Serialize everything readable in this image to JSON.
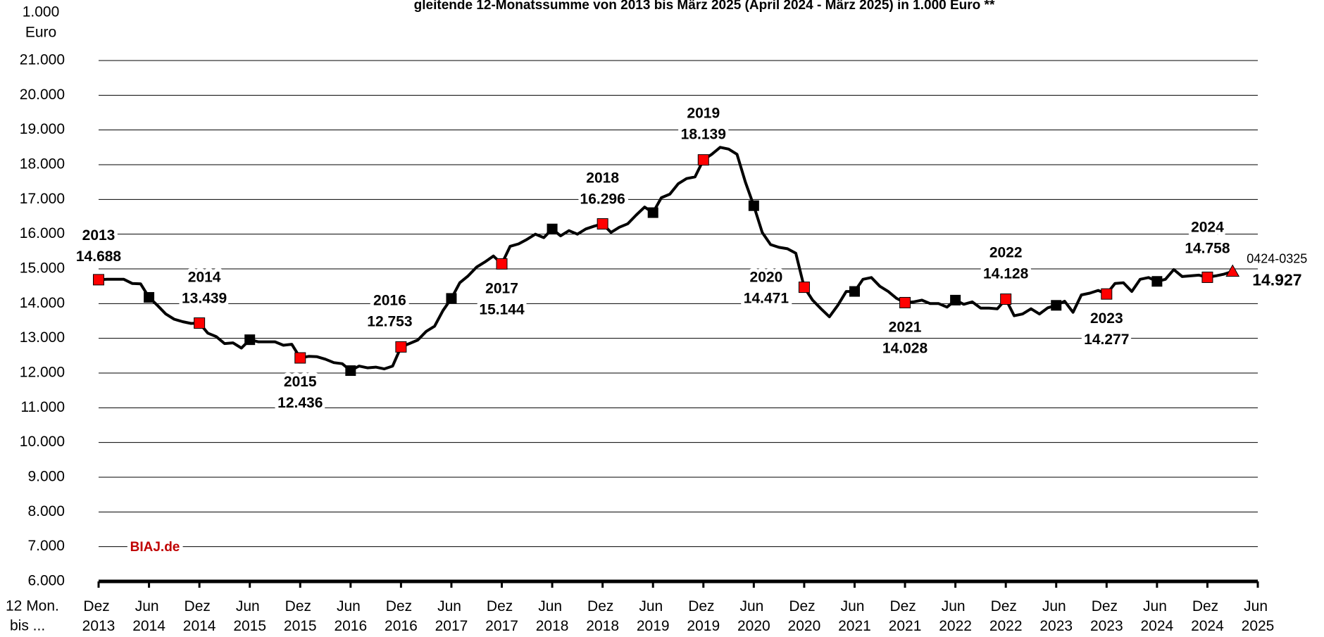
{
  "chart_data": {
    "type": "line",
    "title": "gleitende 12-Monatssumme von 2013 bis März 2025 (April 2024 - März 2025) in 1.000 Euro **",
    "y_unit": [
      "1.000",
      "Euro"
    ],
    "x_corner": [
      "12 Mon.",
      "bis ..."
    ],
    "source": "BIAJ.de",
    "source_color": "#c00000",
    "line_color": "#000000",
    "marker_colors": {
      "dec": "#ff0000",
      "jun": "#000000",
      "last": "#ff0000"
    },
    "grid": true,
    "x": [
      "2013-12",
      "2014-01",
      "2014-02",
      "2014-03",
      "2014-04",
      "2014-05",
      "2014-06",
      "2014-07",
      "2014-08",
      "2014-09",
      "2014-10",
      "2014-11",
      "2014-12",
      "2015-01",
      "2015-02",
      "2015-03",
      "2015-04",
      "2015-05",
      "2015-06",
      "2015-07",
      "2015-08",
      "2015-09",
      "2015-10",
      "2015-11",
      "2015-12",
      "2016-01",
      "2016-02",
      "2016-03",
      "2016-04",
      "2016-05",
      "2016-06",
      "2016-07",
      "2016-08",
      "2016-09",
      "2016-10",
      "2016-11",
      "2016-12",
      "2017-01",
      "2017-02",
      "2017-03",
      "2017-04",
      "2017-05",
      "2017-06",
      "2017-07",
      "2017-08",
      "2017-09",
      "2017-10",
      "2017-11",
      "2017-12",
      "2018-01",
      "2018-02",
      "2018-03",
      "2018-04",
      "2018-05",
      "2018-06",
      "2018-07",
      "2018-08",
      "2018-09",
      "2018-10",
      "2018-11",
      "2018-12",
      "2019-01",
      "2019-02",
      "2019-03",
      "2019-04",
      "2019-05",
      "2019-06",
      "2019-07",
      "2019-08",
      "2019-09",
      "2019-10",
      "2019-11",
      "2019-12",
      "2020-01",
      "2020-02",
      "2020-03",
      "2020-04",
      "2020-05",
      "2020-06",
      "2020-07",
      "2020-08",
      "2020-09",
      "2020-10",
      "2020-11",
      "2020-12",
      "2021-01",
      "2021-02",
      "2021-03",
      "2021-04",
      "2021-05",
      "2021-06",
      "2021-07",
      "2021-08",
      "2021-09",
      "2021-10",
      "2021-11",
      "2021-12",
      "2022-01",
      "2022-02",
      "2022-03",
      "2022-04",
      "2022-05",
      "2022-06",
      "2022-07",
      "2022-08",
      "2022-09",
      "2022-10",
      "2022-11",
      "2022-12",
      "2023-01",
      "2023-02",
      "2023-03",
      "2023-04",
      "2023-05",
      "2023-06",
      "2023-07",
      "2023-08",
      "2023-09",
      "2023-10",
      "2023-11",
      "2023-12",
      "2024-01",
      "2024-02",
      "2024-03",
      "2024-04",
      "2024-05",
      "2024-06",
      "2024-07",
      "2024-08",
      "2024-09",
      "2024-10",
      "2024-11",
      "2024-12",
      "2025-01",
      "2025-02",
      "2025-03"
    ],
    "values": [
      14688,
      14700,
      14700,
      14700,
      14580,
      14570,
      14180,
      13950,
      13700,
      13550,
      13480,
      13430,
      13439,
      13150,
      13050,
      12850,
      12870,
      12720,
      12960,
      12900,
      12900,
      12900,
      12800,
      12830,
      12436,
      12480,
      12470,
      12400,
      12300,
      12270,
      12070,
      12200,
      12150,
      12170,
      12120,
      12200,
      12753,
      12850,
      12950,
      13200,
      13350,
      13800,
      14150,
      14600,
      14800,
      15050,
      15200,
      15370,
      15144,
      15650,
      15720,
      15850,
      16000,
      15900,
      16150,
      15950,
      16100,
      16000,
      16150,
      16230,
      16296,
      16050,
      16200,
      16300,
      16550,
      16780,
      16620,
      17050,
      17150,
      17450,
      17600,
      17650,
      18139,
      18300,
      18500,
      18450,
      18300,
      17500,
      16820,
      16050,
      15700,
      15620,
      15580,
      15450,
      14471,
      14100,
      13850,
      13620,
      13950,
      14350,
      14350,
      14700,
      14750,
      14500,
      14350,
      14150,
      14028,
      14050,
      14100,
      14000,
      14000,
      13900,
      14100,
      13980,
      14050,
      13870,
      13870,
      13850,
      14128,
      13650,
      13700,
      13850,
      13700,
      13880,
      13950,
      14070,
      13750,
      14250,
      14300,
      14380,
      14277,
      14580,
      14600,
      14350,
      14700,
      14750,
      14640,
      14700,
      14980,
      14780,
      14800,
      14820,
      14758,
      14800,
      14850,
      14927
    ],
    "value_labels": [
      "14.688",
      null,
      null,
      null,
      null,
      null,
      null,
      null,
      null,
      null,
      null,
      null,
      "13.439",
      null,
      null,
      null,
      null,
      null,
      null,
      null,
      null,
      null,
      null,
      null,
      "12.436",
      null,
      null,
      null,
      null,
      null,
      null,
      null,
      null,
      null,
      null,
      null,
      "12.753",
      null,
      null,
      null,
      null,
      null,
      null,
      null,
      null,
      null,
      null,
      null,
      "15.144",
      null,
      null,
      null,
      null,
      null,
      null,
      null,
      null,
      null,
      null,
      null,
      "16.296",
      null,
      null,
      null,
      null,
      null,
      null,
      null,
      null,
      null,
      null,
      null,
      "18.139",
      null,
      null,
      null,
      null,
      null,
      null,
      null,
      null,
      null,
      null,
      null,
      "14.471",
      null,
      null,
      null,
      null,
      null,
      null,
      null,
      null,
      null,
      null,
      null,
      "14.028",
      null,
      null,
      null,
      null,
      null,
      null,
      null,
      null,
      null,
      null,
      null,
      "14.128",
      null,
      null,
      null,
      null,
      null,
      null,
      null,
      null,
      null,
      null,
      null,
      "14.277",
      null,
      null,
      null,
      null,
      null,
      null,
      null,
      null,
      null,
      null,
      null,
      "14.758",
      null,
      null,
      "14.927"
    ],
    "annotations": [
      {
        "x": "2013-12",
        "text": "2013"
      },
      {
        "x": "2014-12",
        "text": "2014"
      },
      {
        "x": "2015-12",
        "text": "2015"
      },
      {
        "x": "2016-12",
        "text": "2016"
      },
      {
        "x": "2017-12",
        "text": "2017"
      },
      {
        "x": "2018-12",
        "text": "2018"
      },
      {
        "x": "2019-12",
        "text": "2019"
      },
      {
        "x": "2020-12",
        "text": "2020"
      },
      {
        "x": "2021-12",
        "text": "2021"
      },
      {
        "x": "2022-12",
        "text": "2022"
      },
      {
        "x": "2023-12",
        "text": "2023"
      },
      {
        "x": "2024-12",
        "text": "2024"
      },
      {
        "x": "2025-03",
        "text": "0424-0325"
      }
    ],
    "xlim": [
      "2013-12",
      "2025-06"
    ],
    "xticks": [
      {
        "value": "2013-12",
        "label": "Dez 2013"
      },
      {
        "value": "2014-06",
        "label": "Jun 2014"
      },
      {
        "value": "2014-12",
        "label": "Dez 2014"
      },
      {
        "value": "2015-06",
        "label": "Jun 2015"
      },
      {
        "value": "2015-12",
        "label": "Dez 2015"
      },
      {
        "value": "2016-06",
        "label": "Jun 2016"
      },
      {
        "value": "2016-12",
        "label": "Dez 2016"
      },
      {
        "value": "2017-06",
        "label": "Jun 2017"
      },
      {
        "value": "2017-12",
        "label": "Dez 2017"
      },
      {
        "value": "2018-06",
        "label": "Jun 2018"
      },
      {
        "value": "2018-12",
        "label": "Dez 2018"
      },
      {
        "value": "2019-06",
        "label": "Jun 2019"
      },
      {
        "value": "2019-12",
        "label": "Dez 2019"
      },
      {
        "value": "2020-06",
        "label": "Jun 2020"
      },
      {
        "value": "2020-12",
        "label": "Dez 2020"
      },
      {
        "value": "2021-06",
        "label": "Jun 2021"
      },
      {
        "value": "2021-12",
        "label": "Dez 2021"
      },
      {
        "value": "2022-06",
        "label": "Jun 2022"
      },
      {
        "value": "2022-12",
        "label": "Dez 2022"
      },
      {
        "value": "2023-06",
        "label": "Jun 2023"
      },
      {
        "value": "2023-12",
        "label": "Dez 2023"
      },
      {
        "value": "2024-06",
        "label": "Jun 2024"
      },
      {
        "value": "2024-12",
        "label": "Dez 2024"
      },
      {
        "value": "2025-06",
        "label": "Jun 2025"
      }
    ],
    "ylim": [
      6000,
      21000
    ],
    "yticks": [
      {
        "value": 6000,
        "label": "6.000"
      },
      {
        "value": 7000,
        "label": "7.000"
      },
      {
        "value": 8000,
        "label": "8.000"
      },
      {
        "value": 9000,
        "label": "9.000"
      },
      {
        "value": 10000,
        "label": "10.000"
      },
      {
        "value": 11000,
        "label": "11.000"
      },
      {
        "value": 12000,
        "label": "12.000"
      },
      {
        "value": 13000,
        "label": "13.000"
      },
      {
        "value": 14000,
        "label": "14.000"
      },
      {
        "value": 15000,
        "label": "15.000"
      },
      {
        "value": 16000,
        "label": "16.000"
      },
      {
        "value": 17000,
        "label": "17.000"
      },
      {
        "value": 18000,
        "label": "18.000"
      },
      {
        "value": 19000,
        "label": "19.000"
      },
      {
        "value": 20000,
        "label": "20.000"
      },
      {
        "value": 21000,
        "label": "21.000"
      }
    ]
  }
}
